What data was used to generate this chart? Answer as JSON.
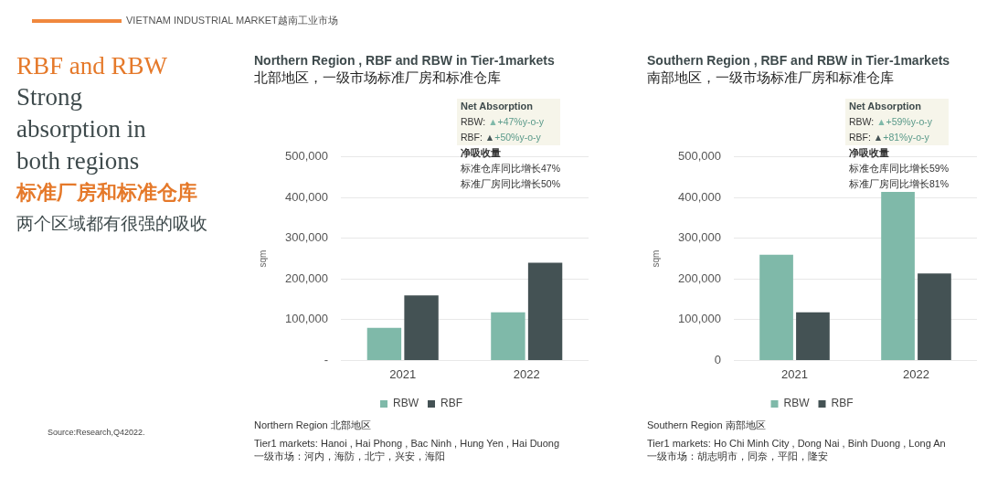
{
  "chart_data": [
    {
      "type": "other",
      "title": "VIETNAM INDUSTRIAL MARKET越南工业市场",
      "annotations": [
        "RBF and RBW",
        "Strong absorption in both regions",
        "标准厂房和标准仓库",
        "两个区域都有很强的吸收",
        "Source:Research,Q42022."
      ]
    },
    {
      "type": "bar",
      "title": "Northern Region , RBF and RBW in Tier-1markets",
      "subtitle": "北部地区，一级市场标准厂房和标准仓库",
      "ylabel": "sqm",
      "categories": [
        "2021",
        "2022"
      ],
      "series": [
        {
          "name": "RBW",
          "color": "#7fb9a9",
          "values": [
            80000,
            118000
          ]
        },
        {
          "name": "RBF",
          "color": "#445254",
          "values": [
            160000,
            240000
          ]
        }
      ],
      "ylim": [
        0,
        500000
      ],
      "yticks": [
        {
          "value": 0,
          "label": "-"
        },
        {
          "value": 100000,
          "label": "100,000"
        },
        {
          "value": 200000,
          "label": "200,000"
        },
        {
          "value": 300000,
          "label": "300,000"
        },
        {
          "value": 400000,
          "label": "400,000"
        },
        {
          "value": 500000,
          "label": "500,000"
        }
      ],
      "grid": "y",
      "legend": "bottom",
      "annotations": [
        "Net Absorption",
        "RBW: ▲+47%y-o-y",
        "RBF: ▲+50%y-o-y",
        "净吸收量",
        "标准仓库同比增长47%",
        "标准厂房同比增长50%",
        "Northern Region  北部地区",
        "Tier1 markets: Hanoi , Hai Phong , Bac Ninh , Hung Yen , Hai Duong",
        "一级市场：河内，海防，北宁，兴安，海阳"
      ]
    },
    {
      "type": "bar",
      "title": "Southern Region , RBF and RBW in Tier-1markets",
      "subtitle": "南部地区，一级市场标准厂房和标准仓库",
      "ylabel": "sqm",
      "categories": [
        "2021",
        "2022"
      ],
      "series": [
        {
          "name": "RBW",
          "color": "#7fb9a9",
          "values": [
            260000,
            414000
          ]
        },
        {
          "name": "RBF",
          "color": "#445254",
          "values": [
            118000,
            214000
          ]
        }
      ],
      "ylim": [
        0,
        500000
      ],
      "yticks": [
        0,
        {
          "value": 100000,
          "label": "100,000"
        },
        {
          "value": 200000,
          "label": "200,000"
        },
        {
          "value": 300000,
          "label": "300,000"
        },
        {
          "value": 400000,
          "label": "400,000"
        },
        {
          "value": 500000,
          "label": "500,000"
        }
      ],
      "grid": "y",
      "legend": "bottom",
      "annotations": [
        "Net Absorption",
        "RBW: ▲+59%y-o-y",
        "RBF: ▲+81%y-o-y",
        "净吸收量",
        "标准仓库同比增长59%",
        "标准厂房同比增长81%",
        "Southern Region  南部地区",
        "Tier1 markets: Ho Chi Minh City , Dong Nai , Binh Duong , Long An",
        "一级市场：胡志明市，同奈，平阳，隆安"
      ]
    }
  ]
}
